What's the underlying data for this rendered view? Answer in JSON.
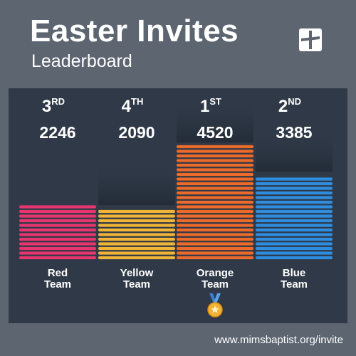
{
  "header": {
    "title": "Easter Invites",
    "subtitle": "Leaderboard"
  },
  "logo": {
    "icon": "cross-logo-icon"
  },
  "footer": {
    "url": "www.mimsbaptist.org/invite"
  },
  "medal": {
    "icon": "gold-medal-icon"
  },
  "chart_data": {
    "type": "bar",
    "categories": [
      "Red Team",
      "Yellow Team",
      "Orange Team",
      "Blue Team"
    ],
    "category_lines": [
      [
        "Red",
        "Team"
      ],
      [
        "Yellow",
        "Team"
      ],
      [
        "Orange",
        "Team"
      ],
      [
        "Blue",
        "Team"
      ]
    ],
    "values": [
      2246,
      2090,
      4520,
      3385
    ],
    "ranks": [
      {
        "num": "3",
        "suffix": "RD"
      },
      {
        "num": "4",
        "suffix": "TH"
      },
      {
        "num": "1",
        "suffix": "ST"
      },
      {
        "num": "2",
        "suffix": "ND"
      }
    ],
    "colors": [
      "#e7356f",
      "#f0b437",
      "#ec6a2a",
      "#2f8de0"
    ],
    "ylim": [
      0,
      4520
    ],
    "grid": false,
    "legend": "none"
  }
}
